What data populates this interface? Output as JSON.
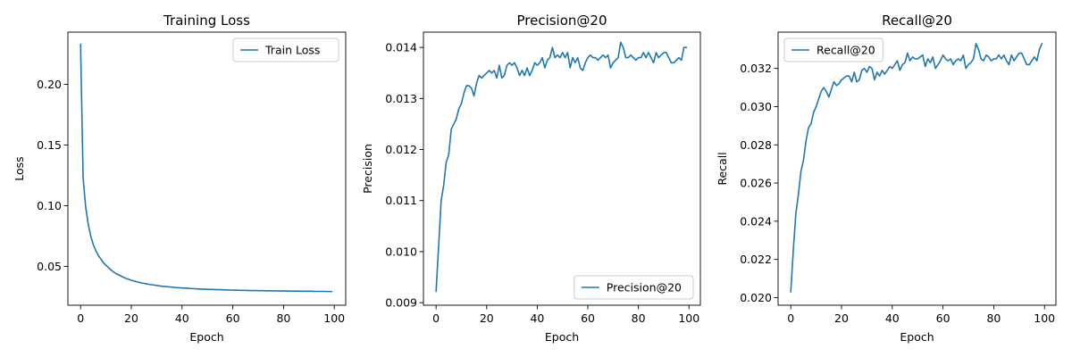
{
  "chart_data": [
    {
      "type": "line",
      "title": "Training Loss",
      "xlabel": "Epoch",
      "ylabel": "Loss",
      "xlim": [
        -5,
        104.5
      ],
      "ylim": [
        0.018,
        0.243
      ],
      "xticks": [
        0,
        20,
        40,
        60,
        80,
        100
      ],
      "xtick_labels": [
        "0",
        "20",
        "40",
        "60",
        "80",
        "100"
      ],
      "yticks": [
        0.05,
        0.1,
        0.15,
        0.2
      ],
      "ytick_labels": [
        "0.05",
        "0.10",
        "0.15",
        "0.20"
      ],
      "legend": "top-right",
      "grid": false,
      "color": "#1f77b4",
      "series": [
        {
          "name": "Train Loss",
          "x": [
            0,
            1,
            2,
            3,
            4,
            5,
            6,
            7,
            8,
            9,
            10,
            11,
            12,
            13,
            14,
            15,
            16,
            17,
            18,
            19,
            20,
            21,
            22,
            23,
            24,
            25,
            26,
            27,
            28,
            29,
            30,
            31,
            32,
            33,
            34,
            35,
            36,
            37,
            38,
            39,
            40,
            41,
            42,
            43,
            44,
            45,
            46,
            47,
            48,
            49,
            50,
            51,
            52,
            53,
            54,
            55,
            56,
            57,
            58,
            59,
            60,
            61,
            62,
            63,
            64,
            65,
            66,
            67,
            68,
            69,
            70,
            71,
            72,
            73,
            74,
            75,
            76,
            77,
            78,
            79,
            80,
            81,
            82,
            83,
            84,
            85,
            86,
            87,
            88,
            89,
            90,
            91,
            92,
            93,
            94,
            95,
            96,
            97,
            98,
            99
          ],
          "values": [
            0.233,
            0.123,
            0.099,
            0.085,
            0.075,
            0.068,
            0.063,
            0.059,
            0.056,
            0.053,
            0.051,
            0.049,
            0.047,
            0.0455,
            0.044,
            0.043,
            0.042,
            0.041,
            0.04,
            0.0393,
            0.0386,
            0.038,
            0.0374,
            0.0369,
            0.0364,
            0.036,
            0.0356,
            0.0352,
            0.0349,
            0.0346,
            0.0343,
            0.034,
            0.0337,
            0.0335,
            0.0333,
            0.0331,
            0.0329,
            0.0327,
            0.0325,
            0.0324,
            0.0322,
            0.0321,
            0.032,
            0.0318,
            0.0317,
            0.0316,
            0.0315,
            0.0314,
            0.0313,
            0.0312,
            0.0311,
            0.031,
            0.031,
            0.0309,
            0.0308,
            0.0308,
            0.0307,
            0.0306,
            0.0306,
            0.0305,
            0.0305,
            0.0304,
            0.0304,
            0.0303,
            0.0303,
            0.0302,
            0.0302,
            0.0301,
            0.0301,
            0.0301,
            0.03,
            0.03,
            0.03,
            0.0299,
            0.0299,
            0.0299,
            0.0298,
            0.0298,
            0.0298,
            0.0297,
            0.0297,
            0.0297,
            0.0297,
            0.0296,
            0.0296,
            0.0296,
            0.0296,
            0.0295,
            0.0295,
            0.0295,
            0.0295,
            0.0295,
            0.0294,
            0.0294,
            0.0294,
            0.0294,
            0.0294,
            0.0293,
            0.0293,
            0.0293
          ]
        }
      ]
    },
    {
      "type": "line",
      "title": "Precision@20",
      "xlabel": "Epoch",
      "ylabel": "Precision",
      "xlim": [
        -5,
        104.5
      ],
      "ylim": [
        0.00895,
        0.0143
      ],
      "xticks": [
        0,
        20,
        40,
        60,
        80,
        100
      ],
      "xtick_labels": [
        "0",
        "20",
        "40",
        "60",
        "80",
        "100"
      ],
      "yticks": [
        0.009,
        0.01,
        0.011,
        0.012,
        0.013,
        0.014
      ],
      "ytick_labels": [
        "0.009",
        "0.010",
        "0.011",
        "0.012",
        "0.013",
        "0.014"
      ],
      "legend": "bottom-right",
      "grid": false,
      "color": "#1f77b4",
      "series": [
        {
          "name": "Precision@20",
          "x": [
            0,
            1,
            2,
            3,
            4,
            5,
            6,
            7,
            8,
            9,
            10,
            11,
            12,
            13,
            14,
            15,
            16,
            17,
            18,
            19,
            20,
            21,
            22,
            23,
            24,
            25,
            26,
            27,
            28,
            29,
            30,
            31,
            32,
            33,
            34,
            35,
            36,
            37,
            38,
            39,
            40,
            41,
            42,
            43,
            44,
            45,
            46,
            47,
            48,
            49,
            50,
            51,
            52,
            53,
            54,
            55,
            56,
            57,
            58,
            59,
            60,
            61,
            62,
            63,
            64,
            65,
            66,
            67,
            68,
            69,
            70,
            71,
            72,
            73,
            74,
            75,
            76,
            77,
            78,
            79,
            80,
            81,
            82,
            83,
            84,
            85,
            86,
            87,
            88,
            89,
            90,
            91,
            92,
            93,
            94,
            95,
            96,
            97,
            98,
            99
          ],
          "values": [
            0.00922,
            0.0101,
            0.011,
            0.0113,
            0.01175,
            0.0119,
            0.0124,
            0.0125,
            0.0126,
            0.0128,
            0.0129,
            0.0131,
            0.01325,
            0.01325,
            0.0132,
            0.01305,
            0.0133,
            0.01345,
            0.0134,
            0.01345,
            0.0135,
            0.01355,
            0.0135,
            0.01355,
            0.0134,
            0.01365,
            0.0134,
            0.01345,
            0.01365,
            0.0137,
            0.01365,
            0.0137,
            0.0136,
            0.01345,
            0.01355,
            0.01345,
            0.0136,
            0.01345,
            0.01355,
            0.0137,
            0.01365,
            0.0137,
            0.0138,
            0.0136,
            0.01375,
            0.0138,
            0.014,
            0.0138,
            0.01385,
            0.0138,
            0.0139,
            0.0138,
            0.0139,
            0.0136,
            0.0138,
            0.0137,
            0.0138,
            0.0136,
            0.01355,
            0.0137,
            0.0138,
            0.01385,
            0.0138,
            0.0138,
            0.01375,
            0.0138,
            0.01385,
            0.0138,
            0.01385,
            0.0136,
            0.0137,
            0.01375,
            0.0138,
            0.0141,
            0.014,
            0.0138,
            0.0138,
            0.01385,
            0.0138,
            0.01375,
            0.0138,
            0.0138,
            0.0139,
            0.0138,
            0.0139,
            0.0138,
            0.0137,
            0.0139,
            0.0138,
            0.01385,
            0.0139,
            0.0139,
            0.0138,
            0.0137,
            0.0137,
            0.01375,
            0.0138,
            0.01375,
            0.014,
            0.014
          ]
        }
      ]
    },
    {
      "type": "line",
      "title": "Recall@20",
      "xlabel": "Epoch",
      "ylabel": "Recall",
      "xlim": [
        -5,
        104.5
      ],
      "ylim": [
        0.0196,
        0.0339
      ],
      "xticks": [
        0,
        20,
        40,
        60,
        80,
        100
      ],
      "xtick_labels": [
        "0",
        "20",
        "40",
        "60",
        "80",
        "100"
      ],
      "yticks": [
        0.02,
        0.022,
        0.024,
        0.026,
        0.028,
        0.03,
        0.032
      ],
      "ytick_labels": [
        "0.020",
        "0.022",
        "0.024",
        "0.026",
        "0.028",
        "0.030",
        "0.032"
      ],
      "legend": "top-left",
      "grid": false,
      "color": "#1f77b4",
      "series": [
        {
          "name": "Recall@20",
          "x": [
            0,
            1,
            2,
            3,
            4,
            5,
            6,
            7,
            8,
            9,
            10,
            11,
            12,
            13,
            14,
            15,
            16,
            17,
            18,
            19,
            20,
            21,
            22,
            23,
            24,
            25,
            26,
            27,
            28,
            29,
            30,
            31,
            32,
            33,
            34,
            35,
            36,
            37,
            38,
            39,
            40,
            41,
            42,
            43,
            44,
            45,
            46,
            47,
            48,
            49,
            50,
            51,
            52,
            53,
            54,
            55,
            56,
            57,
            58,
            59,
            60,
            61,
            62,
            63,
            64,
            65,
            66,
            67,
            68,
            69,
            70,
            71,
            72,
            73,
            74,
            75,
            76,
            77,
            78,
            79,
            80,
            81,
            82,
            83,
            84,
            85,
            86,
            87,
            88,
            89,
            90,
            91,
            92,
            93,
            94,
            95,
            96,
            97,
            98,
            99
          ],
          "values": [
            0.0203,
            0.0225,
            0.0244,
            0.0254,
            0.0266,
            0.0272,
            0.0282,
            0.0289,
            0.0291,
            0.0297,
            0.03,
            0.0304,
            0.0308,
            0.031,
            0.0308,
            0.0305,
            0.0309,
            0.0313,
            0.0311,
            0.0312,
            0.0314,
            0.0315,
            0.0316,
            0.0316,
            0.0313,
            0.0318,
            0.0313,
            0.0314,
            0.0319,
            0.032,
            0.0318,
            0.0321,
            0.032,
            0.0314,
            0.0318,
            0.0316,
            0.0319,
            0.0317,
            0.0319,
            0.0321,
            0.032,
            0.0322,
            0.0324,
            0.0319,
            0.0322,
            0.0323,
            0.0328,
            0.0324,
            0.0326,
            0.0325,
            0.0325,
            0.0326,
            0.0327,
            0.0321,
            0.0325,
            0.0323,
            0.0326,
            0.032,
            0.0322,
            0.0324,
            0.0327,
            0.0325,
            0.0324,
            0.0325,
            0.0322,
            0.0324,
            0.0325,
            0.0324,
            0.0327,
            0.032,
            0.0322,
            0.0323,
            0.0325,
            0.0333,
            0.033,
            0.0325,
            0.0324,
            0.0327,
            0.0326,
            0.0324,
            0.0325,
            0.0325,
            0.0327,
            0.0325,
            0.0327,
            0.0324,
            0.0322,
            0.0327,
            0.0324,
            0.0326,
            0.0328,
            0.0328,
            0.0325,
            0.0322,
            0.0322,
            0.0324,
            0.0326,
            0.0324,
            0.033,
            0.0333
          ]
        }
      ]
    }
  ]
}
